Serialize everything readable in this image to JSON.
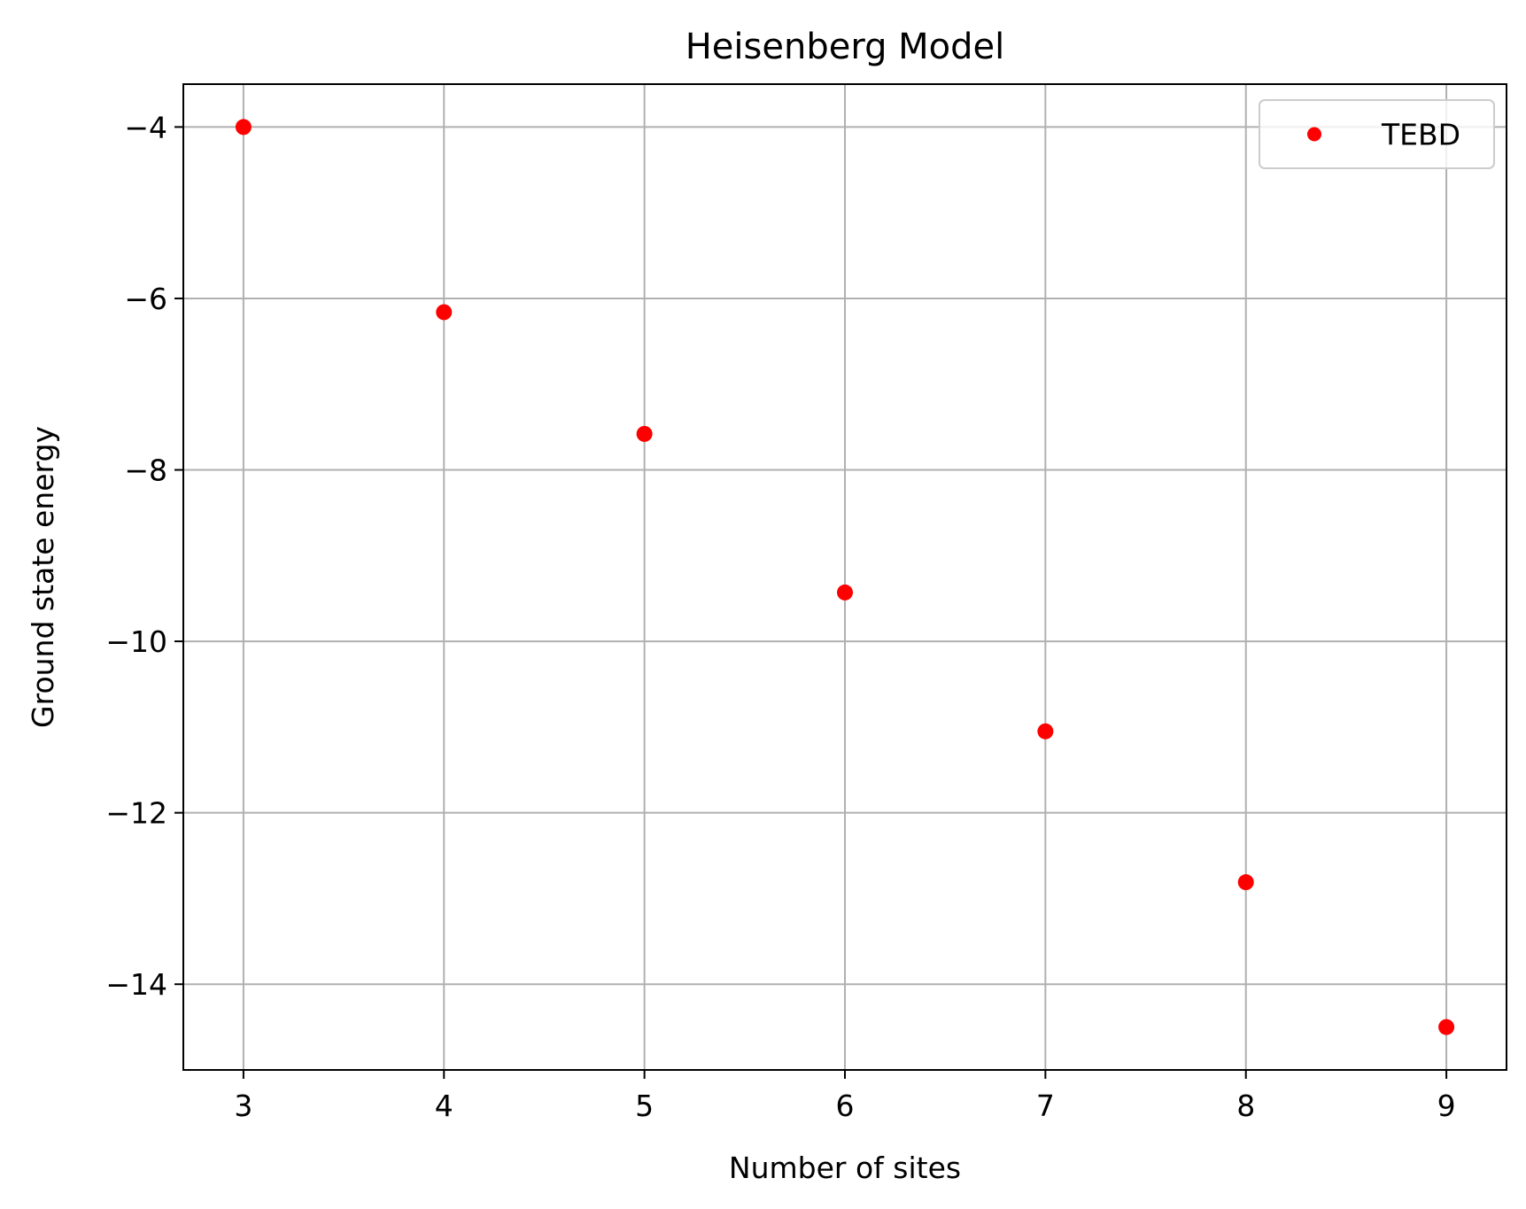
{
  "chart_data": {
    "type": "scatter",
    "title": "Heisenberg Model",
    "xlabel": "Number of sites",
    "ylabel": "Ground state energy",
    "xlim": [
      2.7,
      9.3
    ],
    "ylim": [
      -15.0,
      -3.5
    ],
    "x_ticks": [
      3,
      4,
      5,
      6,
      7,
      8,
      9
    ],
    "x_tick_labels": [
      "3",
      "4",
      "5",
      "6",
      "7",
      "8",
      "9"
    ],
    "y_ticks": [
      -4,
      -6,
      -8,
      -10,
      -12,
      -14
    ],
    "y_tick_labels": [
      "−4",
      "−6",
      "−8",
      "−10",
      "−12",
      "−14"
    ],
    "grid": true,
    "legend_position": "top-right",
    "series": [
      {
        "name": "TEBD",
        "color": "#ff0000",
        "marker": "circle",
        "x": [
          3,
          4,
          5,
          6,
          7,
          8,
          9
        ],
        "y": [
          -4.0,
          -6.16,
          -7.58,
          -9.43,
          -11.05,
          -12.81,
          -14.5
        ]
      }
    ]
  }
}
